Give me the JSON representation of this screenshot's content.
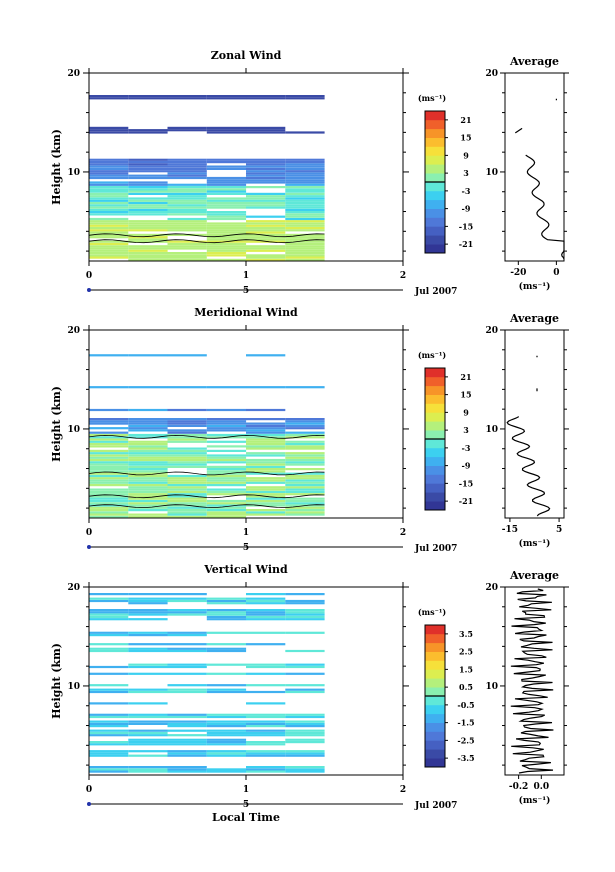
{
  "figure": {
    "date_label": "Jul 2007",
    "xlabel": "Local Time",
    "ylabel": "Height (km)"
  },
  "chart_data": [
    {
      "type": "heatmap",
      "title": "Zonal Wind",
      "xlabel": "",
      "ylabel": "Height (km)",
      "xlim": [
        0,
        2
      ],
      "ylim": [
        1,
        20
      ],
      "x_ticks": [
        "0",
        "1",
        "2"
      ],
      "y_ticks": [
        "10",
        "20"
      ],
      "day_axis_label": "5",
      "colorbar_unit": "(ms⁻¹)",
      "colorbar_ticks": [
        "21",
        "15",
        "9",
        "3",
        "-3",
        "-9",
        "-15",
        "-21"
      ],
      "colorbar_range": [
        -24,
        24
      ],
      "average": {
        "title": "Average",
        "xlim": [
          -27,
          4
        ],
        "x_ticks": [
          "-20",
          "0"
        ],
        "unit": "(ms⁻¹)"
      }
    },
    {
      "type": "heatmap",
      "title": "Meridional Wind",
      "xlabel": "",
      "ylabel": "Height (km)",
      "xlim": [
        0,
        2
      ],
      "ylim": [
        1,
        20
      ],
      "x_ticks": [
        "0",
        "1",
        "2"
      ],
      "y_ticks": [
        "10",
        "20"
      ],
      "day_axis_label": "5",
      "colorbar_unit": "(ms⁻¹)",
      "colorbar_ticks": [
        "21",
        "15",
        "9",
        "3",
        "-3",
        "-9",
        "-15",
        "-21"
      ],
      "colorbar_range": [
        -24,
        24
      ],
      "average": {
        "title": "Average",
        "xlim": [
          -17,
          7
        ],
        "x_ticks": [
          "-15",
          "5"
        ],
        "unit": "(ms⁻¹)"
      }
    },
    {
      "type": "heatmap",
      "title": "Vertical Wind",
      "xlabel": "Local Time",
      "ylabel": "Height (km)",
      "xlim": [
        0,
        2
      ],
      "ylim": [
        1,
        20
      ],
      "x_ticks": [
        "0",
        "1",
        "2"
      ],
      "y_ticks": [
        "10",
        "20"
      ],
      "day_axis_label": "5",
      "colorbar_unit": "(ms⁻¹)",
      "colorbar_ticks": [
        "3.5",
        "2.5",
        "1.5",
        "0.5",
        "-0.5",
        "-1.5",
        "-2.5",
        "-3.5"
      ],
      "colorbar_range": [
        -4,
        4
      ],
      "average": {
        "title": "Average",
        "xlim": [
          -0.32,
          0.2
        ],
        "x_ticks": [
          "-0.2",
          "0.0"
        ],
        "unit": "(ms⁻¹)"
      }
    }
  ]
}
